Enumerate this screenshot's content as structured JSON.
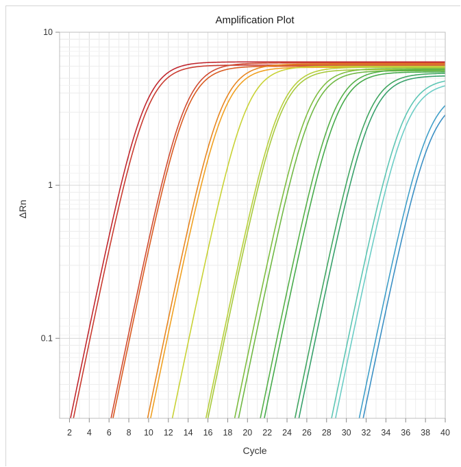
{
  "chart_data": {
    "type": "line",
    "title": "Amplification Plot",
    "xlabel": "Cycle",
    "ylabel": "ΔRn",
    "xlim": [
      1,
      40
    ],
    "ylim": [
      0.03,
      10
    ],
    "y_scale": "log",
    "x_ticks": [
      2,
      4,
      6,
      8,
      10,
      12,
      14,
      16,
      18,
      20,
      22,
      24,
      26,
      28,
      30,
      32,
      34,
      36,
      38,
      40
    ],
    "y_ticks": [
      {
        "value": 0.1,
        "label": "0.1"
      },
      {
        "value": 1,
        "label": "1"
      },
      {
        "value": 10,
        "label": "10"
      }
    ],
    "grid": true,
    "legend": "none",
    "series": [
      {
        "color": "#c0262d",
        "x_at_0_03": 2.1,
        "plateau": 6.4
      },
      {
        "color": "#c93a2e",
        "x_at_0_03": 2.4,
        "plateau": 6.1
      },
      {
        "color": "#d04a30",
        "x_at_0_03": 6.2,
        "plateau": 6.3
      },
      {
        "color": "#d95a1f",
        "x_at_0_03": 6.4,
        "plateau": 6.0
      },
      {
        "color": "#e8861f",
        "x_at_0_03": 9.9,
        "plateau": 6.2
      },
      {
        "color": "#f0a020",
        "x_at_0_03": 10.2,
        "plateau": 5.9
      },
      {
        "color": "#c8d234",
        "x_at_0_03": 12.4,
        "plateau": 6.0
      },
      {
        "color": "#b7cf3a",
        "x_at_0_03": 15.8,
        "plateau": 5.9
      },
      {
        "color": "#a7c93c",
        "x_at_0_03": 16.0,
        "plateau": 5.7
      },
      {
        "color": "#7dbd3f",
        "x_at_0_03": 18.7,
        "plateau": 5.8
      },
      {
        "color": "#6fb843",
        "x_at_0_03": 19.1,
        "plateau": 5.6
      },
      {
        "color": "#54b047",
        "x_at_0_03": 21.3,
        "plateau": 5.7
      },
      {
        "color": "#45aa4a",
        "x_at_0_03": 21.7,
        "plateau": 5.5
      },
      {
        "color": "#3fa660",
        "x_at_0_03": 24.8,
        "plateau": 5.4
      },
      {
        "color": "#36a06a",
        "x_at_0_03": 25.2,
        "plateau": 5.2
      },
      {
        "color": "#5cc6b4",
        "x_at_0_03": 28.5,
        "plateau": 5.0
      },
      {
        "color": "#6ccdc6",
        "x_at_0_03": 28.9,
        "plateau": 4.7
      },
      {
        "color": "#3f9fc9",
        "x_at_0_03": 31.3,
        "plateau": 4.2
      },
      {
        "color": "#3a8fc4",
        "x_at_0_03": 31.7,
        "plateau": 3.8
      }
    ]
  }
}
